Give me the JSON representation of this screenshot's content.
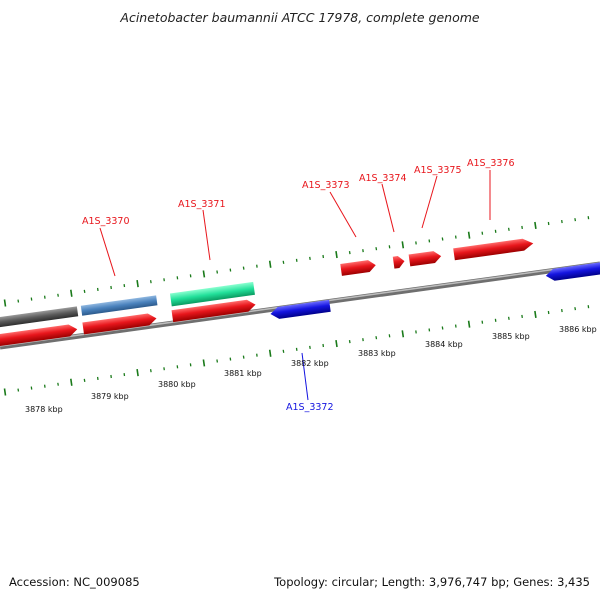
{
  "title": "Acinetobacter baumannii ATCC 17978, complete genome",
  "footer": {
    "accession": "Accession: NC_009085",
    "summary": "Topology: circular; Length: 3,976,747 bp; Genes: 3,435"
  },
  "colors": {
    "forward_gene": "#e8161c",
    "reverse_gene": "#1515e0",
    "steelblue_feature": "#4a82bd",
    "green_feature": "#22e09a",
    "gray_feature": "#5a5a5a",
    "backbone": "#8c8c8c",
    "tick": "#1a7a1a"
  },
  "scale": {
    "labels": [
      "3878 kbp",
      "3879 kbp",
      "3880 kbp",
      "3881 kbp",
      "3882 kbp",
      "3883 kbp",
      "3884 kbp",
      "3885 kbp",
      "3886 kbp"
    ]
  },
  "gene_labels": [
    {
      "name": "A1S_3370",
      "strand": "forward"
    },
    {
      "name": "A1S_3371",
      "strand": "forward"
    },
    {
      "name": "A1S_3373",
      "strand": "forward"
    },
    {
      "name": "A1S_3374",
      "strand": "forward"
    },
    {
      "name": "A1S_3375",
      "strand": "forward"
    },
    {
      "name": "A1S_3376",
      "strand": "forward"
    },
    {
      "name": "A1S_3372",
      "strand": "reverse"
    }
  ]
}
